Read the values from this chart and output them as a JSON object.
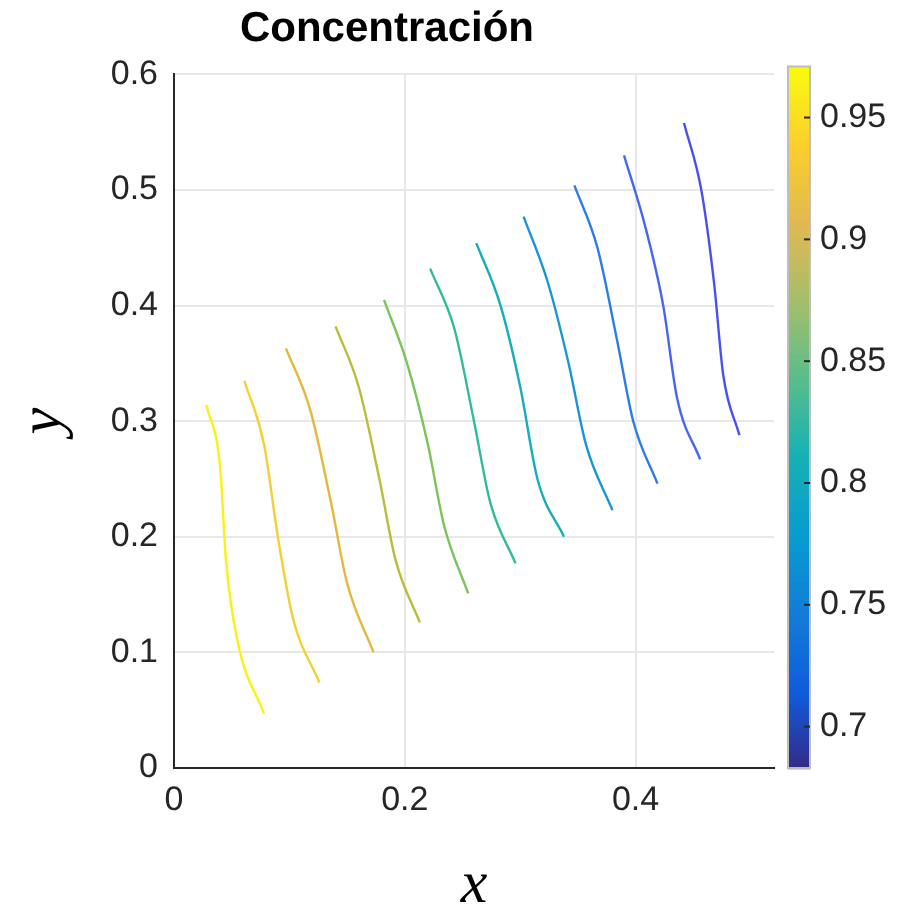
{
  "chart_data": {
    "type": "line",
    "title": "Concentración",
    "xlabel": "x",
    "ylabel": "y",
    "xlim": [
      0,
      0.52
    ],
    "ylim": [
      0,
      0.6
    ],
    "xticks": [
      0,
      0.2,
      0.4
    ],
    "yticks": [
      0,
      0.1,
      0.2,
      0.3,
      0.4,
      0.5,
      0.6
    ],
    "grid": true,
    "legend": false,
    "marker": "none",
    "line_style": "solid",
    "clim": [
      0.683,
      0.971
    ],
    "cticks": [
      0.7,
      0.75,
      0.8,
      0.85,
      0.9,
      0.95
    ],
    "series": [
      {
        "color": "#f9f216",
        "x": [
          0.028,
          0.04,
          0.045,
          0.055,
          0.078
        ],
        "values": [
          0.314,
          0.26,
          0.18,
          0.11,
          0.047
        ]
      },
      {
        "color": "#f5d032",
        "x": [
          0.061,
          0.078,
          0.09,
          0.103,
          0.126
        ],
        "values": [
          0.335,
          0.28,
          0.2,
          0.13,
          0.074
        ]
      },
      {
        "color": "#e6b83a",
        "x": [
          0.097,
          0.118,
          0.136,
          0.15,
          0.173
        ],
        "values": [
          0.363,
          0.31,
          0.23,
          0.16,
          0.1
        ]
      },
      {
        "color": "#b9bd3a",
        "x": [
          0.14,
          0.16,
          0.178,
          0.192,
          0.213
        ],
        "values": [
          0.382,
          0.33,
          0.25,
          0.18,
          0.126
        ]
      },
      {
        "color": "#7ac45a",
        "x": [
          0.182,
          0.202,
          0.22,
          0.234,
          0.255
        ],
        "values": [
          0.405,
          0.35,
          0.28,
          0.21,
          0.151
        ]
      },
      {
        "color": "#2fbc99",
        "x": [
          0.222,
          0.243,
          0.26,
          0.274,
          0.296
        ],
        "values": [
          0.432,
          0.38,
          0.3,
          0.23,
          0.177
        ]
      },
      {
        "color": "#14aebd",
        "x": [
          0.262,
          0.283,
          0.3,
          0.315,
          0.338
        ],
        "values": [
          0.454,
          0.4,
          0.33,
          0.25,
          0.2
        ]
      },
      {
        "color": "#1a96d8",
        "x": [
          0.303,
          0.324,
          0.342,
          0.357,
          0.38
        ],
        "values": [
          0.477,
          0.42,
          0.35,
          0.28,
          0.223
        ]
      },
      {
        "color": "#2c7de8",
        "x": [
          0.347,
          0.367,
          0.384,
          0.398,
          0.419
        ],
        "values": [
          0.504,
          0.45,
          0.37,
          0.3,
          0.246
        ]
      },
      {
        "color": "#4466f3",
        "x": [
          0.39,
          0.408,
          0.424,
          0.436,
          0.456
        ],
        "values": [
          0.53,
          0.47,
          0.4,
          0.32,
          0.267
        ]
      },
      {
        "color": "#4a4ff0",
        "x": [
          0.442,
          0.457,
          0.468,
          0.476,
          0.49
        ],
        "values": [
          0.558,
          0.5,
          0.42,
          0.34,
          0.288
        ]
      }
    ]
  }
}
